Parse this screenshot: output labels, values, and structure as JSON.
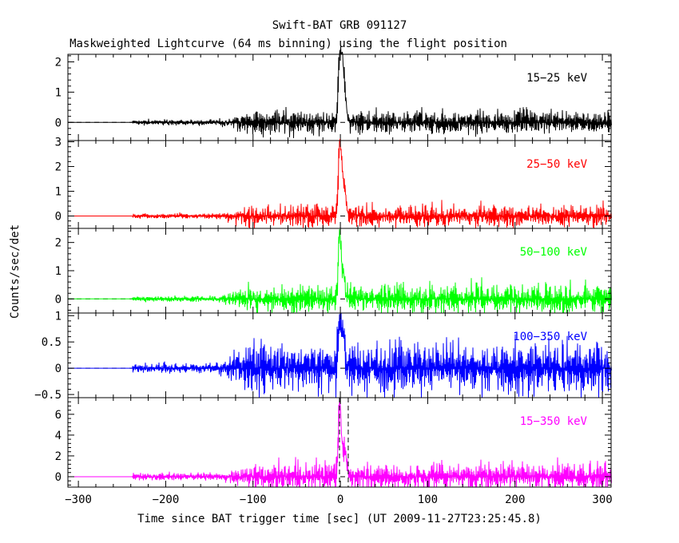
{
  "chart_data": {
    "type": "line",
    "title": "Swift-BAT GRB 091127",
    "subtitle": "Maskweighted Lightcurve (64 ms binning) using the flight position",
    "xlabel": "Time since BAT trigger time [sec] (UT 2009-11-27T23:25:45.8)",
    "ylabel": "Counts/sec/det",
    "xlim": [
      -312,
      310
    ],
    "x_ticks": [
      -300,
      -200,
      -100,
      0,
      100,
      200,
      300
    ],
    "data_start": -238,
    "grid": false,
    "dashed_zero_line": true,
    "vertical_dashed_markers": [
      -1,
      9
    ],
    "panels": [
      {
        "name": "15-25 keV",
        "label": "15−25 keV",
        "color": "#000000",
        "ylim": [
          -0.6,
          2.25
        ],
        "ticks": [
          0,
          1,
          2
        ],
        "tick_labels": [
          "0",
          "1",
          "2"
        ],
        "pre_noise": 0.05,
        "mid_noise": 0.22,
        "post_noise": 0.22,
        "peaks": [
          {
            "t": -1,
            "value": 2.2
          },
          {
            "t": 2,
            "value": 1.6
          },
          {
            "t": 5,
            "value": 0.85
          }
        ]
      },
      {
        "name": "25-50 keV",
        "label": "25−50 keV",
        "color": "#ff0000",
        "ylim": [
          -0.5,
          3.05
        ],
        "ticks": [
          0,
          1,
          2,
          3
        ],
        "tick_labels": [
          "0",
          "1",
          "2",
          "3"
        ],
        "pre_noise": 0.06,
        "mid_noise": 0.25,
        "post_noise": 0.25,
        "peaks": [
          {
            "t": -1,
            "value": 2.9
          },
          {
            "t": 2,
            "value": 1.2
          },
          {
            "t": 5,
            "value": 0.75
          }
        ]
      },
      {
        "name": "50-100 keV",
        "label": "50−100 keV",
        "color": "#00ff00",
        "ylim": [
          -0.5,
          2.5
        ],
        "ticks": [
          0,
          1,
          2
        ],
        "tick_labels": [
          "0",
          "1",
          "2"
        ],
        "pre_noise": 0.06,
        "mid_noise": 0.28,
        "post_noise": 0.28,
        "peaks": [
          {
            "t": -1,
            "value": 2.4
          },
          {
            "t": 3,
            "value": 0.75
          }
        ]
      },
      {
        "name": "100-350 keV",
        "label": "100−350 keV",
        "color": "#0000ff",
        "ylim": [
          -0.56,
          1.05
        ],
        "ticks": [
          -0.5,
          0,
          0.5,
          1
        ],
        "tick_labels": [
          "−0.5",
          "0",
          "0.5",
          "1"
        ],
        "pre_noise": 0.06,
        "mid_noise": 0.27,
        "post_noise": 0.27,
        "peaks": [
          {
            "t": -1,
            "value": 1.0
          },
          {
            "t": 3,
            "value": 0.55
          }
        ]
      },
      {
        "name": "15-350 keV",
        "label": "15−350 keV",
        "color": "#ff00ff",
        "ylim": [
          -1.0,
          7.6
        ],
        "ticks": [
          0,
          2,
          4,
          6
        ],
        "tick_labels": [
          "0",
          "2",
          "4",
          "6"
        ],
        "pre_noise": 0.2,
        "mid_noise": 0.75,
        "post_noise": 0.75,
        "peaks": [
          {
            "t": -1,
            "value": 7.2
          },
          {
            "t": 3,
            "value": 2.0
          },
          {
            "t": 6,
            "value": 1.5
          }
        ]
      }
    ]
  }
}
